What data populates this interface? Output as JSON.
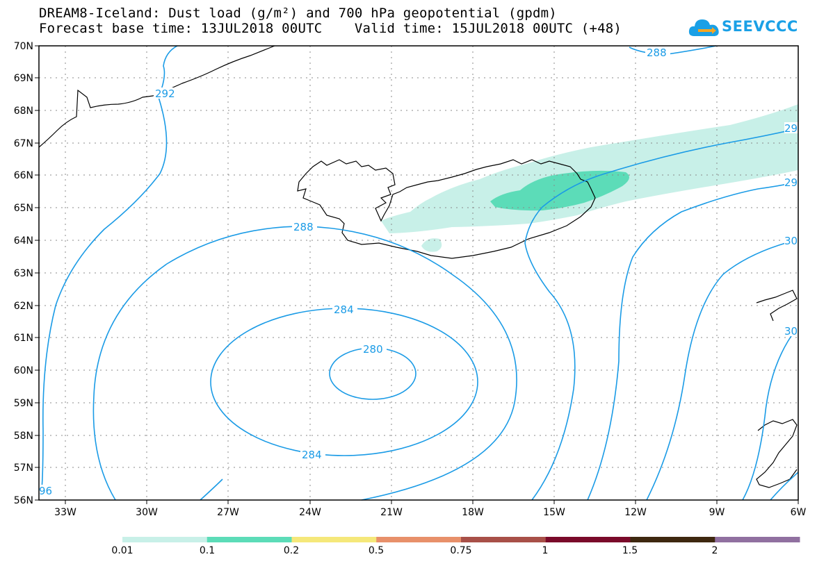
{
  "title": {
    "line1": "DREAM8-Iceland: Dust load (g/m²) and 700 hPa geopotential (gpdm)",
    "line2": "Forecast base time: 13JUL2018 00UTC    Valid time: 15JUL2018 00UTC (+48)"
  },
  "logo": {
    "name": "cloud-logo-icon",
    "text": "SEEVCCC"
  },
  "axes": {
    "lat_labels": [
      "70N",
      "69N",
      "68N",
      "67N",
      "66N",
      "65N",
      "64N",
      "63N",
      "62N",
      "61N",
      "60N",
      "59N",
      "58N",
      "57N",
      "56N"
    ],
    "lon_labels": [
      "33W",
      "30W",
      "27W",
      "24W",
      "21W",
      "18W",
      "15W",
      "12W",
      "9W",
      "6W"
    ]
  },
  "contours": {
    "color": "#1a9be6",
    "labels": [
      "288",
      "292",
      "288",
      "284",
      "280",
      "284",
      "96",
      "29",
      "29",
      "30",
      "30"
    ]
  },
  "colorbar": {
    "tick_labels": [
      "0.01",
      "0.1",
      "0.2",
      "0.5",
      "0.75",
      "1",
      "1.5",
      "2"
    ],
    "colors": [
      "#c8f0e8",
      "#5cdcb8",
      "#f5e87a",
      "#e8906a",
      "#a85048",
      "#7a0a2a",
      "#3e2810",
      "#9070a0"
    ]
  }
}
